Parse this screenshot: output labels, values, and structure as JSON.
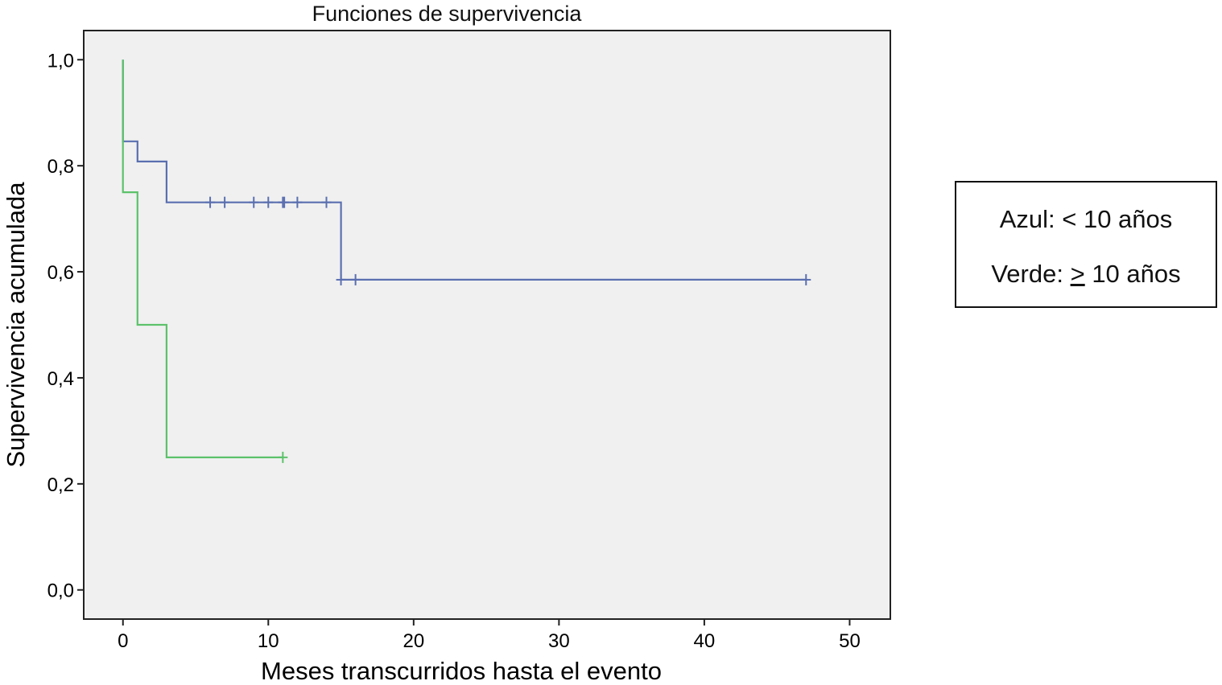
{
  "chart_data": {
    "type": "line",
    "title": "Funciones de supervivencia",
    "xlabel": "Meses transcurridos hasta el evento",
    "ylabel": "Supervivencia acumulada",
    "xlim": [
      -2.7,
      52.8
    ],
    "ylim": [
      -0.055,
      1.055
    ],
    "x_ticks": [
      0,
      10,
      20,
      30,
      40,
      50
    ],
    "x_tick_labels": [
      "0",
      "10",
      "20",
      "30",
      "40",
      "50"
    ],
    "y_ticks": [
      0.0,
      0.2,
      0.4,
      0.6,
      0.8,
      1.0
    ],
    "y_tick_labels": [
      "0,0",
      "0,2",
      "0,4",
      "0,6",
      "0,8",
      "1,0"
    ],
    "grid": false,
    "plot_background": "#f0f0f0",
    "step": true,
    "series": [
      {
        "color": "#5a6fb0",
        "steps": [
          [
            0,
            1.0
          ],
          [
            0,
            0.846
          ],
          [
            1,
            0.846
          ],
          [
            1,
            0.808
          ],
          [
            3,
            0.808
          ],
          [
            3,
            0.731
          ],
          [
            15,
            0.731
          ],
          [
            15,
            0.585
          ],
          [
            47,
            0.585
          ]
        ],
        "censored": [
          [
            6,
            0.731
          ],
          [
            7,
            0.731
          ],
          [
            9,
            0.731
          ],
          [
            10,
            0.731
          ],
          [
            11,
            0.731
          ],
          [
            11.1,
            0.731
          ],
          [
            12,
            0.731
          ],
          [
            14,
            0.731
          ],
          [
            15,
            0.585
          ],
          [
            16,
            0.585
          ],
          [
            47,
            0.585
          ]
        ]
      },
      {
        "color": "#5cc26a",
        "steps": [
          [
            0,
            1.0
          ],
          [
            0,
            0.75
          ],
          [
            1,
            0.75
          ],
          [
            1,
            0.5
          ],
          [
            3,
            0.5
          ],
          [
            3,
            0.25
          ],
          [
            11,
            0.25
          ]
        ],
        "censored": [
          [
            11,
            0.25
          ]
        ]
      }
    ]
  },
  "legend": {
    "line1": "Azul: < 10 años",
    "line2_prefix": "Verde: ",
    "line2_symbol": ">",
    "line2_suffix": " 10 años"
  }
}
